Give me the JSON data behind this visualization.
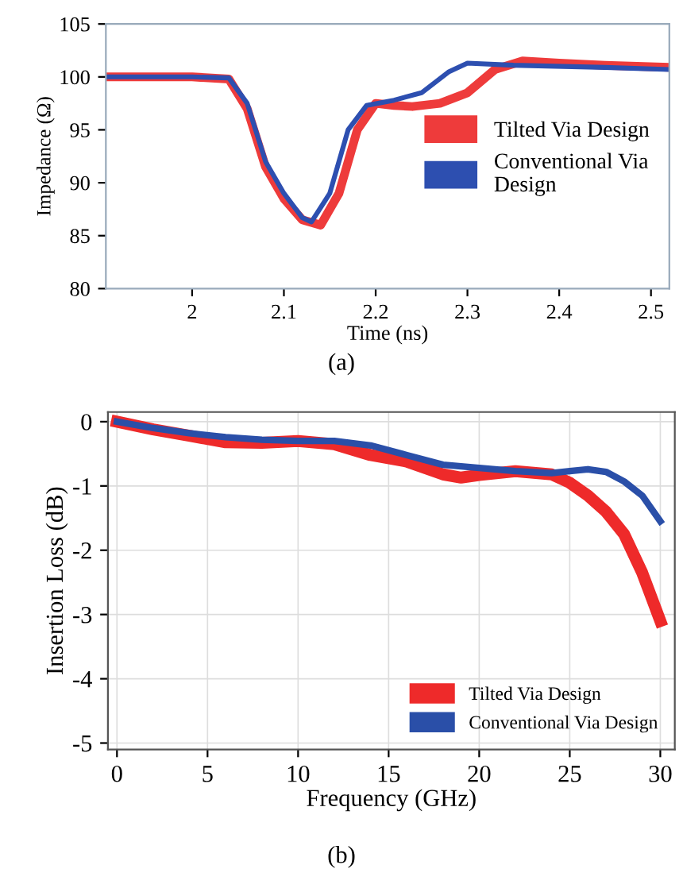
{
  "chart_data": [
    {
      "type": "line",
      "xlabel": "Time (ns)",
      "ylabel": "Impedance (Ω)",
      "xlim": [
        1.906,
        2.52
      ],
      "ylim": [
        80,
        105
      ],
      "xticks": [
        2,
        2.1,
        2.2,
        2.3,
        2.4,
        2.5
      ],
      "yticks": [
        80,
        85,
        90,
        95,
        100,
        105
      ],
      "grid": false,
      "legend": "right",
      "marker": "none",
      "line_style": "solid",
      "annotations": [
        "(a)"
      ],
      "series": [
        {
          "name": "Tilted Via Design",
          "color": "#ee3b3b",
          "x": [
            1.906,
            2.0,
            2.04,
            2.06,
            2.08,
            2.1,
            2.12,
            2.14,
            2.16,
            2.18,
            2.2,
            2.22,
            2.24,
            2.27,
            2.3,
            2.33,
            2.36,
            2.4,
            2.45,
            2.52
          ],
          "values": [
            100,
            100,
            99.8,
            97,
            91.5,
            88.5,
            86.5,
            86,
            89,
            95,
            97.5,
            97.3,
            97.2,
            97.5,
            98.5,
            100.7,
            101.5,
            101.3,
            101.1,
            100.9
          ]
        },
        {
          "name": "Conventional Via Design",
          "color": "#2d4fb0",
          "x": [
            1.906,
            2.0,
            2.04,
            2.06,
            2.08,
            2.1,
            2.12,
            2.13,
            2.15,
            2.17,
            2.19,
            2.22,
            2.25,
            2.28,
            2.3,
            2.35,
            2.45,
            2.52
          ],
          "values": [
            100,
            100,
            99.9,
            97.5,
            92,
            89,
            86.7,
            86.3,
            89,
            95,
            97.3,
            97.8,
            98.5,
            100.5,
            101.3,
            101.1,
            100.9,
            100.7
          ]
        }
      ]
    },
    {
      "type": "line",
      "xlabel": "Frequency (GHz)",
      "ylabel": "Insertion Loss (dB)",
      "xlim": [
        -0.5,
        30.8
      ],
      "ylim": [
        -5.1,
        0.15
      ],
      "xticks": [
        0,
        5,
        10,
        15,
        20,
        25,
        30
      ],
      "yticks": [
        {
          "value": -5,
          "label": "-5"
        },
        {
          "value": -4,
          "label": "-4"
        },
        {
          "value": -3,
          "label": "-3"
        },
        {
          "value": -2,
          "label": "-2"
        },
        {
          "value": -1,
          "label": "-1"
        },
        0
      ],
      "grid": true,
      "legend": "bottom right",
      "marker": "none",
      "line_style": "solid",
      "annotations": [
        "(b)"
      ],
      "series": [
        {
          "name": "Tilted Via Design",
          "color": "#ee2a2a",
          "x": [
            0,
            2,
            4,
            6,
            8,
            10,
            12,
            14,
            16,
            18,
            19,
            20,
            22,
            24,
            25,
            26,
            27,
            28,
            29,
            30
          ],
          "values": [
            0,
            -0.12,
            -0.22,
            -0.32,
            -0.33,
            -0.3,
            -0.35,
            -0.52,
            -0.62,
            -0.82,
            -0.87,
            -0.83,
            -0.77,
            -0.82,
            -0.95,
            -1.15,
            -1.4,
            -1.75,
            -2.35,
            -3.1
          ]
        },
        {
          "name": "Conventional Via Design",
          "color": "#2a4fa8",
          "x": [
            0,
            2,
            4,
            6,
            8,
            10,
            12,
            14,
            16,
            18,
            20,
            22,
            24,
            25,
            26,
            27,
            28,
            29,
            30
          ],
          "values": [
            0,
            -0.1,
            -0.18,
            -0.24,
            -0.28,
            -0.3,
            -0.3,
            -0.37,
            -0.52,
            -0.67,
            -0.72,
            -0.77,
            -0.8,
            -0.77,
            -0.74,
            -0.78,
            -0.93,
            -1.15,
            -1.55
          ]
        }
      ]
    }
  ]
}
